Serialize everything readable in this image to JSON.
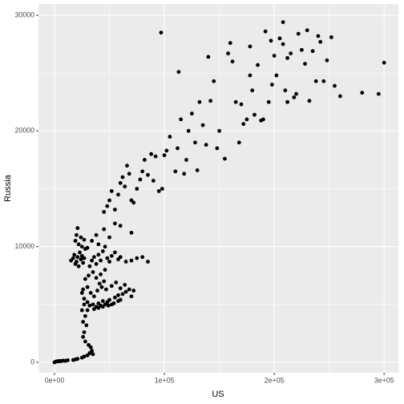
{
  "chart_data": {
    "type": "scatter",
    "x_label": "US",
    "y_label": "Russia",
    "color": "#000000",
    "grid": true,
    "xlim": [
      -14600,
      313000
    ],
    "ylim": [
      -900,
      30970
    ],
    "xticks": [
      {
        "value": 0,
        "label": "0e+00"
      },
      {
        "value": 100000,
        "label": "1e+05"
      },
      {
        "value": 200000,
        "label": "2e+05"
      },
      {
        "value": 300000,
        "label": "3e+05"
      }
    ],
    "yticks": [
      0,
      10000,
      20000,
      30000
    ],
    "x_minor_ticks": [
      50000,
      150000,
      250000
    ],
    "y_minor_ticks": [
      5000,
      15000,
      25000
    ],
    "x": [
      0,
      1000,
      2000,
      3000,
      4000,
      5000,
      6000,
      8000,
      10000,
      12000,
      17000,
      19000,
      21000,
      25000,
      27000,
      30000,
      32000,
      34000,
      33000,
      31000,
      35000,
      28000,
      26000,
      27000,
      29000,
      26000,
      28000,
      25000,
      27000,
      25000,
      26000,
      27000,
      30000,
      32000,
      35000,
      38000,
      40000,
      42000,
      44000,
      46000,
      48000,
      50000,
      52000,
      55000,
      58000,
      60000,
      62000,
      65000,
      68000,
      70000,
      72000,
      30000,
      33000,
      36000,
      39000,
      41000,
      43000,
      45000,
      47000,
      52000,
      56000,
      60000,
      64000,
      28000,
      31000,
      35000,
      38000,
      42000,
      46000,
      30000,
      36000,
      40000,
      44000,
      49000,
      54000,
      58000,
      15000,
      17000,
      18000,
      19000,
      20000,
      21000,
      22000,
      23000,
      24000,
      25000,
      26000,
      27000,
      28000,
      19000,
      20000,
      21000,
      22000,
      24000,
      25000,
      27000,
      30000,
      32000,
      34000,
      36000,
      38000,
      40000,
      42000,
      44000,
      46000,
      48000,
      50000,
      52000,
      55000,
      58000,
      60000,
      65000,
      70000,
      75000,
      80000,
      85000,
      34000,
      38000,
      40000,
      45000,
      50000,
      55000,
      60000,
      70000,
      45000,
      48000,
      50000,
      52000,
      55000,
      58000,
      60000,
      62000,
      64000,
      66000,
      68000,
      70000,
      72000,
      75000,
      78000,
      80000,
      82000,
      85000,
      88000,
      90000,
      92000,
      95000,
      98000,
      100000,
      102000,
      105000,
      110000,
      112000,
      115000,
      118000,
      120000,
      122000,
      125000,
      128000,
      130000,
      132000,
      135000,
      138000,
      140000,
      142000,
      145000,
      148000,
      150000,
      155000,
      158000,
      160000,
      162000,
      165000,
      168000,
      170000,
      172000,
      175000,
      178000,
      180000,
      182000,
      185000,
      188000,
      190000,
      192000,
      195000,
      198000,
      200000,
      202000,
      205000,
      208000,
      210000,
      212000,
      215000,
      218000,
      220000,
      222000,
      225000,
      228000,
      230000,
      232000,
      235000,
      238000,
      240000,
      242000,
      245000,
      248000,
      252000,
      255000,
      260000,
      97000,
      113000,
      280000,
      300000,
      295000,
      208000,
      178000,
      197000,
      212000
    ],
    "values": [
      0,
      50,
      80,
      100,
      80,
      120,
      100,
      150,
      130,
      180,
      200,
      250,
      300,
      400,
      500,
      600,
      800,
      1000,
      1300,
      1500,
      700,
      1800,
      2200,
      2600,
      3200,
      3500,
      4000,
      4500,
      5000,
      6000,
      6300,
      5500,
      5200,
      4900,
      5000,
      4800,
      5100,
      4900,
      5300,
      5000,
      5200,
      5400,
      5000,
      5600,
      5800,
      5400,
      5900,
      6100,
      6300,
      5700,
      6200,
      6500,
      6000,
      5700,
      6200,
      6800,
      6500,
      7000,
      6300,
      6600,
      6900,
      6400,
      6700,
      7200,
      7500,
      7800,
      7300,
      7600,
      8000,
      4500,
      4600,
      4700,
      4800,
      4900,
      5100,
      5300,
      8800,
      9000,
      9300,
      8500,
      8700,
      9100,
      8300,
      9500,
      8900,
      9200,
      8600,
      9000,
      9800,
      10500,
      11000,
      11600,
      10200,
      10800,
      10000,
      10600,
      9900,
      8300,
      8800,
      9100,
      8500,
      9300,
      8800,
      9600,
      10000,
      9000,
      8700,
      9200,
      9500,
      8900,
      9100,
      8700,
      8800,
      9000,
      9100,
      8700,
      10500,
      11000,
      10200,
      11500,
      10800,
      12000,
      11800,
      11200,
      13000,
      13500,
      14000,
      14800,
      13200,
      14500,
      15500,
      16000,
      15200,
      17000,
      16300,
      14000,
      13800,
      15000,
      15800,
      16500,
      17500,
      16200,
      18000,
      15700,
      17800,
      14800,
      15000,
      17900,
      18300,
      19500,
      16500,
      18500,
      21000,
      16300,
      17500,
      20000,
      21500,
      19000,
      16600,
      22500,
      20500,
      18800,
      26400,
      22600,
      24300,
      18500,
      20000,
      17600,
      26700,
      27600,
      26000,
      22500,
      19000,
      22300,
      20600,
      21000,
      24800,
      23500,
      21400,
      25700,
      20900,
      21000,
      28600,
      22500,
      24000,
      26500,
      24800,
      28000,
      27500,
      23500,
      22500,
      26700,
      22900,
      23200,
      28400,
      27000,
      25800,
      28700,
      22600,
      26900,
      24300,
      28200,
      27700,
      24300,
      26100,
      28100,
      23900,
      23000,
      28500,
      25100,
      23300,
      25900,
      23200,
      29400,
      27300,
      27800,
      26300
    ]
  }
}
